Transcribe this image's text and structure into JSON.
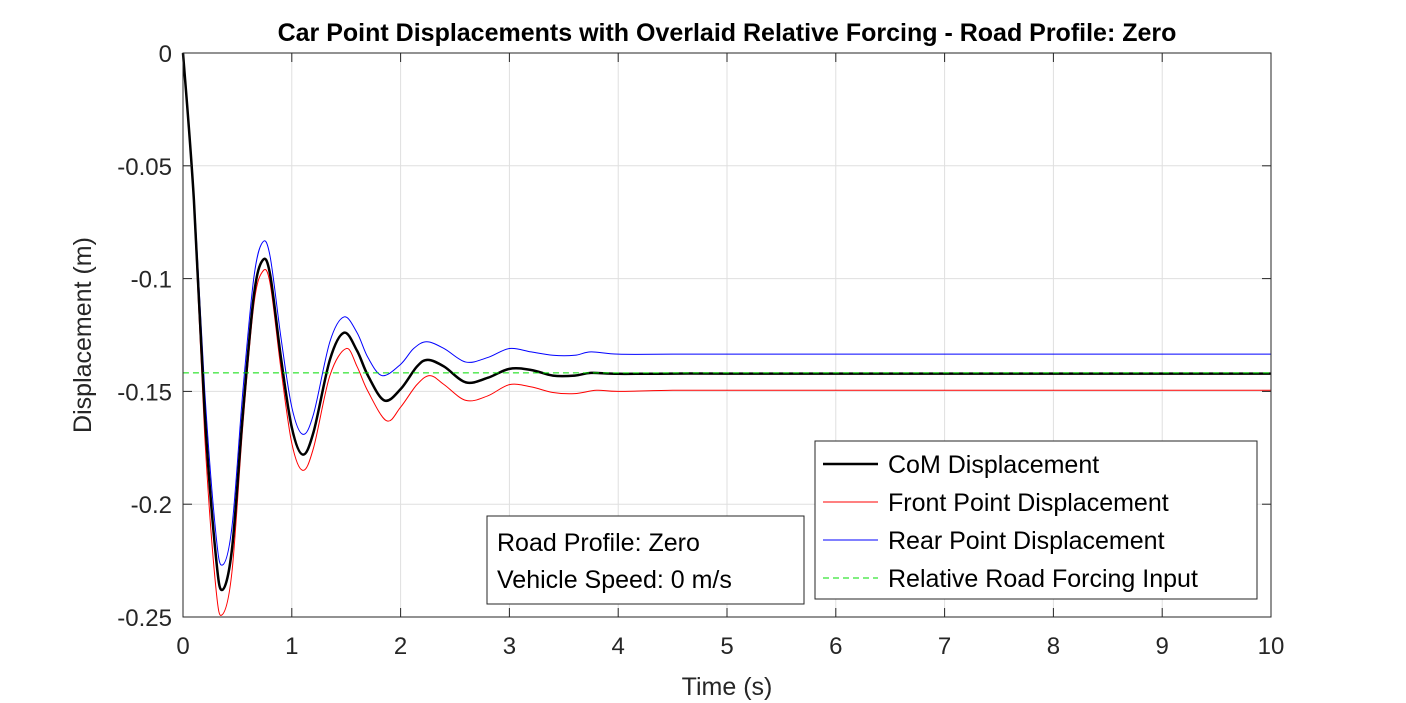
{
  "chart_data": {
    "type": "line",
    "title": "Car Point Displacements with Overlaid Relative Forcing - Road Profile: Zero",
    "xlabel": "Time (s)",
    "ylabel": "Displacement (m)",
    "xlim": [
      0,
      10
    ],
    "ylim": [
      -0.25,
      0
    ],
    "x_ticks": [
      0,
      1,
      2,
      3,
      4,
      5,
      6,
      7,
      8,
      9,
      10
    ],
    "x_tick_labels": [
      "0",
      "1",
      "2",
      "3",
      "4",
      "5",
      "6",
      "7",
      "8",
      "9",
      "10"
    ],
    "y_ticks": [
      0,
      -0.05,
      -0.1,
      -0.15,
      -0.2,
      -0.25
    ],
    "y_tick_labels": [
      "0",
      "-0.05",
      "-0.1",
      "-0.15",
      "-0.2",
      "-0.25"
    ],
    "grid": true,
    "legend_position": "bottom-right",
    "series": [
      {
        "name": "CoM Displacement",
        "color": "#000000",
        "style": "solid",
        "x": [
          0,
          0.1,
          0.2,
          0.3,
          0.36,
          0.45,
          0.55,
          0.65,
          0.73,
          0.8,
          0.9,
          1.0,
          1.1,
          1.2,
          1.35,
          1.48,
          1.6,
          1.7,
          1.85,
          2.0,
          2.15,
          2.25,
          2.4,
          2.6,
          2.8,
          3.0,
          3.2,
          3.4,
          3.6,
          3.75,
          4.0,
          4.5,
          5,
          6,
          7,
          8,
          9,
          10
        ],
        "y": [
          0,
          -0.065,
          -0.16,
          -0.222,
          -0.238,
          -0.22,
          -0.16,
          -0.108,
          -0.092,
          -0.098,
          -0.135,
          -0.166,
          -0.178,
          -0.168,
          -0.136,
          -0.124,
          -0.132,
          -0.143,
          -0.154,
          -0.149,
          -0.139,
          -0.136,
          -0.139,
          -0.146,
          -0.144,
          -0.14,
          -0.1405,
          -0.143,
          -0.143,
          -0.1418,
          -0.1422,
          -0.1421,
          -0.1421,
          -0.1421,
          -0.1421,
          -0.1421,
          -0.1421,
          -0.1421
        ]
      },
      {
        "name": "Front Point Displacement",
        "color": "#ff0000",
        "style": "solid",
        "x": [
          0,
          0.1,
          0.2,
          0.3,
          0.36,
          0.45,
          0.55,
          0.65,
          0.73,
          0.8,
          0.9,
          1.0,
          1.1,
          1.2,
          1.35,
          1.5,
          1.6,
          1.7,
          1.87,
          2.0,
          2.15,
          2.27,
          2.4,
          2.6,
          2.8,
          3.0,
          3.2,
          3.4,
          3.6,
          3.8,
          4.0,
          4.5,
          5,
          6,
          7,
          8,
          9,
          10
        ],
        "y": [
          0,
          -0.068,
          -0.17,
          -0.236,
          -0.249,
          -0.23,
          -0.165,
          -0.112,
          -0.097,
          -0.102,
          -0.14,
          -0.173,
          -0.185,
          -0.175,
          -0.143,
          -0.131,
          -0.139,
          -0.15,
          -0.163,
          -0.157,
          -0.147,
          -0.143,
          -0.147,
          -0.154,
          -0.152,
          -0.147,
          -0.148,
          -0.1505,
          -0.151,
          -0.1495,
          -0.15,
          -0.1495,
          -0.1495,
          -0.1495,
          -0.1495,
          -0.1495,
          -0.1495,
          -0.1495
        ]
      },
      {
        "name": "Rear Point Displacement",
        "color": "#0000ff",
        "style": "solid",
        "x": [
          0,
          0.1,
          0.2,
          0.3,
          0.36,
          0.45,
          0.55,
          0.65,
          0.73,
          0.8,
          0.9,
          1.0,
          1.1,
          1.2,
          1.35,
          1.48,
          1.6,
          1.7,
          1.83,
          2.0,
          2.12,
          2.24,
          2.4,
          2.6,
          2.8,
          3.0,
          3.2,
          3.4,
          3.6,
          3.75,
          4.0,
          4.5,
          5,
          6,
          7,
          8,
          9,
          10
        ],
        "y": [
          0,
          -0.062,
          -0.15,
          -0.212,
          -0.227,
          -0.21,
          -0.15,
          -0.1,
          -0.084,
          -0.09,
          -0.126,
          -0.157,
          -0.169,
          -0.16,
          -0.128,
          -0.117,
          -0.124,
          -0.135,
          -0.143,
          -0.138,
          -0.131,
          -0.128,
          -0.131,
          -0.137,
          -0.135,
          -0.131,
          -0.1325,
          -0.134,
          -0.134,
          -0.1325,
          -0.1335,
          -0.1335,
          -0.1335,
          -0.1335,
          -0.1335,
          -0.1335,
          -0.1335,
          -0.1335
        ]
      },
      {
        "name": "Relative Road Forcing Input",
        "color": "#00dd00",
        "style": "dashed",
        "x": [
          0,
          10
        ],
        "y": [
          -0.1418,
          -0.1418
        ]
      }
    ],
    "annotation": {
      "lines": [
        "Road Profile: Zero",
        "Vehicle Speed: 0 m/s"
      ]
    }
  }
}
